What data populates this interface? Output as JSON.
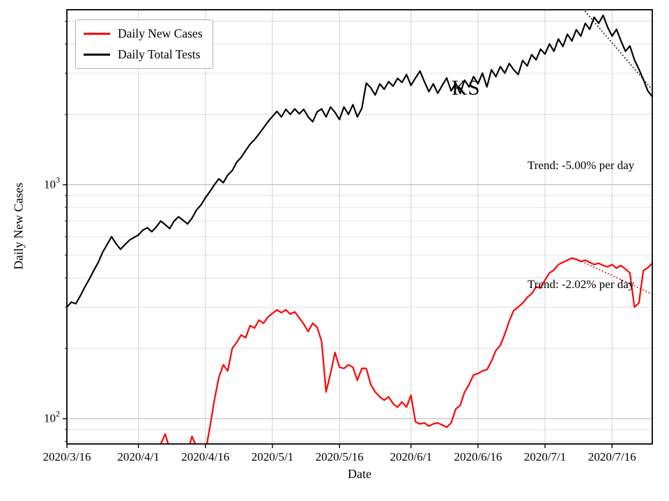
{
  "figure": {
    "state_label": "KS",
    "xlabel": "Date",
    "ylabel": "Daily New Cases",
    "annotations": {
      "tests_trend": "Trend: -5.00% per day",
      "cases_trend": "Trend: -2.02% per day"
    },
    "legend": {
      "items": [
        {
          "label": "Daily New Cases",
          "color": "#ff0000"
        },
        {
          "label": "Daily Total Tests",
          "color": "#000000"
        }
      ]
    }
  },
  "chart_data": {
    "type": "line",
    "yscale": "log",
    "xlabel": "Date",
    "ylabel": "Daily New Cases",
    "xlim_days": [
      0,
      131
    ],
    "ylim": [
      78,
      5600
    ],
    "grid": true,
    "legend_position": "upper-left",
    "x_ticks": [
      {
        "label": "2020/3/16",
        "day": 0
      },
      {
        "label": "2020/4/1",
        "day": 16
      },
      {
        "label": "2020/4/16",
        "day": 31
      },
      {
        "label": "2020/5/1",
        "day": 46
      },
      {
        "label": "2020/5/16",
        "day": 61
      },
      {
        "label": "2020/6/1",
        "day": 77
      },
      {
        "label": "2020/6/16",
        "day": 92
      },
      {
        "label": "2020/7/1",
        "day": 107
      },
      {
        "label": "2020/7/16",
        "day": 122
      }
    ],
    "y_ticks": [
      {
        "base": "10",
        "exp": "2",
        "value": 100
      },
      {
        "base": "10",
        "exp": "3",
        "value": 1000
      }
    ],
    "series": [
      {
        "name": "Daily Total Tests",
        "color": "#000000",
        "width": 2.2,
        "points": [
          [
            0,
            300
          ],
          [
            1,
            315
          ],
          [
            2,
            310
          ],
          [
            3,
            335
          ],
          [
            4,
            365
          ],
          [
            5,
            395
          ],
          [
            6,
            430
          ],
          [
            7,
            465
          ],
          [
            8,
            515
          ],
          [
            9,
            555
          ],
          [
            10,
            600
          ],
          [
            11,
            560
          ],
          [
            12,
            530
          ],
          [
            13,
            555
          ],
          [
            14,
            580
          ],
          [
            15,
            595
          ],
          [
            16,
            610
          ],
          [
            17,
            640
          ],
          [
            18,
            655
          ],
          [
            19,
            630
          ],
          [
            20,
            660
          ],
          [
            21,
            700
          ],
          [
            22,
            675
          ],
          [
            23,
            650
          ],
          [
            24,
            700
          ],
          [
            25,
            730
          ],
          [
            26,
            705
          ],
          [
            27,
            680
          ],
          [
            28,
            720
          ],
          [
            29,
            780
          ],
          [
            30,
            820
          ],
          [
            31,
            880
          ],
          [
            32,
            935
          ],
          [
            33,
            1000
          ],
          [
            34,
            1060
          ],
          [
            35,
            1020
          ],
          [
            36,
            1100
          ],
          [
            37,
            1150
          ],
          [
            38,
            1250
          ],
          [
            39,
            1310
          ],
          [
            40,
            1400
          ],
          [
            41,
            1490
          ],
          [
            42,
            1560
          ],
          [
            43,
            1650
          ],
          [
            44,
            1750
          ],
          [
            45,
            1860
          ],
          [
            46,
            1960
          ],
          [
            47,
            2060
          ],
          [
            48,
            1950
          ],
          [
            49,
            2100
          ],
          [
            50,
            2000
          ],
          [
            51,
            2110
          ],
          [
            52,
            2010
          ],
          [
            53,
            2100
          ],
          [
            54,
            1950
          ],
          [
            55,
            1860
          ],
          [
            56,
            2050
          ],
          [
            57,
            2110
          ],
          [
            58,
            1950
          ],
          [
            59,
            2150
          ],
          [
            60,
            2040
          ],
          [
            61,
            1900
          ],
          [
            62,
            2150
          ],
          [
            63,
            2000
          ],
          [
            64,
            2200
          ],
          [
            65,
            1950
          ],
          [
            66,
            2120
          ],
          [
            67,
            2720
          ],
          [
            68,
            2600
          ],
          [
            69,
            2420
          ],
          [
            70,
            2700
          ],
          [
            71,
            2560
          ],
          [
            72,
            2760
          ],
          [
            73,
            2640
          ],
          [
            74,
            2850
          ],
          [
            75,
            2740
          ],
          [
            76,
            2960
          ],
          [
            77,
            2660
          ],
          [
            78,
            2860
          ],
          [
            79,
            3060
          ],
          [
            80,
            2760
          ],
          [
            81,
            2500
          ],
          [
            82,
            2700
          ],
          [
            83,
            2460
          ],
          [
            84,
            2660
          ],
          [
            85,
            2860
          ],
          [
            86,
            2520
          ],
          [
            87,
            2720
          ],
          [
            88,
            2460
          ],
          [
            89,
            2800
          ],
          [
            90,
            2620
          ],
          [
            91,
            2900
          ],
          [
            92,
            2700
          ],
          [
            93,
            3000
          ],
          [
            94,
            2620
          ],
          [
            95,
            3100
          ],
          [
            96,
            2900
          ],
          [
            97,
            3200
          ],
          [
            98,
            3000
          ],
          [
            99,
            3300
          ],
          [
            100,
            3100
          ],
          [
            101,
            2960
          ],
          [
            102,
            3400
          ],
          [
            103,
            3220
          ],
          [
            104,
            3600
          ],
          [
            105,
            3420
          ],
          [
            106,
            3800
          ],
          [
            107,
            3620
          ],
          [
            108,
            4000
          ],
          [
            109,
            3720
          ],
          [
            110,
            4200
          ],
          [
            111,
            3900
          ],
          [
            112,
            4400
          ],
          [
            113,
            4120
          ],
          [
            114,
            4600
          ],
          [
            115,
            4320
          ],
          [
            116,
            4900
          ],
          [
            117,
            4620
          ],
          [
            118,
            5200
          ],
          [
            119,
            4900
          ],
          [
            120,
            5300
          ],
          [
            121,
            4720
          ],
          [
            122,
            4320
          ],
          [
            123,
            4620
          ],
          [
            124,
            4120
          ],
          [
            125,
            3720
          ],
          [
            126,
            3920
          ],
          [
            127,
            3420
          ],
          [
            128,
            3120
          ],
          [
            129,
            2820
          ],
          [
            130,
            2520
          ],
          [
            131,
            2380
          ]
        ]
      },
      {
        "name": "Daily New Cases",
        "color": "#ff0000",
        "width": 2.2,
        "points": [
          [
            20,
            68
          ],
          [
            21,
            78
          ],
          [
            22,
            86
          ],
          [
            23,
            74
          ],
          [
            24,
            64
          ],
          [
            25,
            60
          ],
          [
            26,
            66
          ],
          [
            27,
            72
          ],
          [
            28,
            84
          ],
          [
            29,
            76
          ],
          [
            30,
            64
          ],
          [
            31,
            72
          ],
          [
            32,
            92
          ],
          [
            33,
            120
          ],
          [
            34,
            150
          ],
          [
            35,
            170
          ],
          [
            36,
            160
          ],
          [
            37,
            200
          ],
          [
            38,
            212
          ],
          [
            39,
            228
          ],
          [
            40,
            222
          ],
          [
            41,
            250
          ],
          [
            42,
            244
          ],
          [
            43,
            264
          ],
          [
            44,
            256
          ],
          [
            45,
            272
          ],
          [
            46,
            282
          ],
          [
            47,
            292
          ],
          [
            48,
            284
          ],
          [
            49,
            292
          ],
          [
            50,
            280
          ],
          [
            51,
            286
          ],
          [
            52,
            270
          ],
          [
            53,
            254
          ],
          [
            54,
            236
          ],
          [
            55,
            256
          ],
          [
            56,
            246
          ],
          [
            57,
            214
          ],
          [
            58,
            130
          ],
          [
            59,
            156
          ],
          [
            60,
            192
          ],
          [
            61,
            166
          ],
          [
            62,
            164
          ],
          [
            63,
            170
          ],
          [
            64,
            166
          ],
          [
            65,
            146
          ],
          [
            66,
            164
          ],
          [
            67,
            164
          ],
          [
            68,
            140
          ],
          [
            69,
            130
          ],
          [
            70,
            124
          ],
          [
            71,
            120
          ],
          [
            72,
            124
          ],
          [
            73,
            116
          ],
          [
            74,
            112
          ],
          [
            75,
            118
          ],
          [
            76,
            112
          ],
          [
            77,
            126
          ],
          [
            78,
            97
          ],
          [
            79,
            95
          ],
          [
            80,
            96
          ],
          [
            81,
            93
          ],
          [
            82,
            95
          ],
          [
            83,
            96
          ],
          [
            84,
            94
          ],
          [
            85,
            92
          ],
          [
            86,
            96
          ],
          [
            87,
            110
          ],
          [
            88,
            114
          ],
          [
            89,
            130
          ],
          [
            90,
            140
          ],
          [
            91,
            154
          ],
          [
            92,
            156
          ],
          [
            93,
            160
          ],
          [
            94,
            162
          ],
          [
            95,
            176
          ],
          [
            96,
            196
          ],
          [
            97,
            206
          ],
          [
            98,
            230
          ],
          [
            99,
            262
          ],
          [
            100,
            290
          ],
          [
            101,
            300
          ],
          [
            102,
            312
          ],
          [
            103,
            330
          ],
          [
            104,
            342
          ],
          [
            105,
            366
          ],
          [
            106,
            362
          ],
          [
            107,
            392
          ],
          [
            108,
            420
          ],
          [
            109,
            432
          ],
          [
            110,
            456
          ],
          [
            111,
            466
          ],
          [
            112,
            476
          ],
          [
            113,
            486
          ],
          [
            114,
            480
          ],
          [
            115,
            470
          ],
          [
            116,
            476
          ],
          [
            117,
            466
          ],
          [
            118,
            456
          ],
          [
            119,
            462
          ],
          [
            120,
            452
          ],
          [
            121,
            446
          ],
          [
            122,
            456
          ],
          [
            123,
            440
          ],
          [
            124,
            452
          ],
          [
            125,
            436
          ],
          [
            126,
            420
          ],
          [
            127,
            300
          ],
          [
            128,
            312
          ],
          [
            129,
            430
          ],
          [
            130,
            442
          ],
          [
            131,
            462
          ]
        ]
      }
    ],
    "trend_lines": [
      {
        "name": "tests-trend",
        "label": "Trend: -5.00% per day",
        "color": "#000000",
        "start_day": 116,
        "end_day": 131,
        "start_value": 5500,
        "rate_per_day": -0.05
      },
      {
        "name": "cases-trend",
        "label": "Trend: -2.02% per day",
        "color": "#cc0000",
        "start_day": 114,
        "end_day": 131,
        "start_value": 482,
        "rate_per_day": -0.0202
      }
    ]
  }
}
